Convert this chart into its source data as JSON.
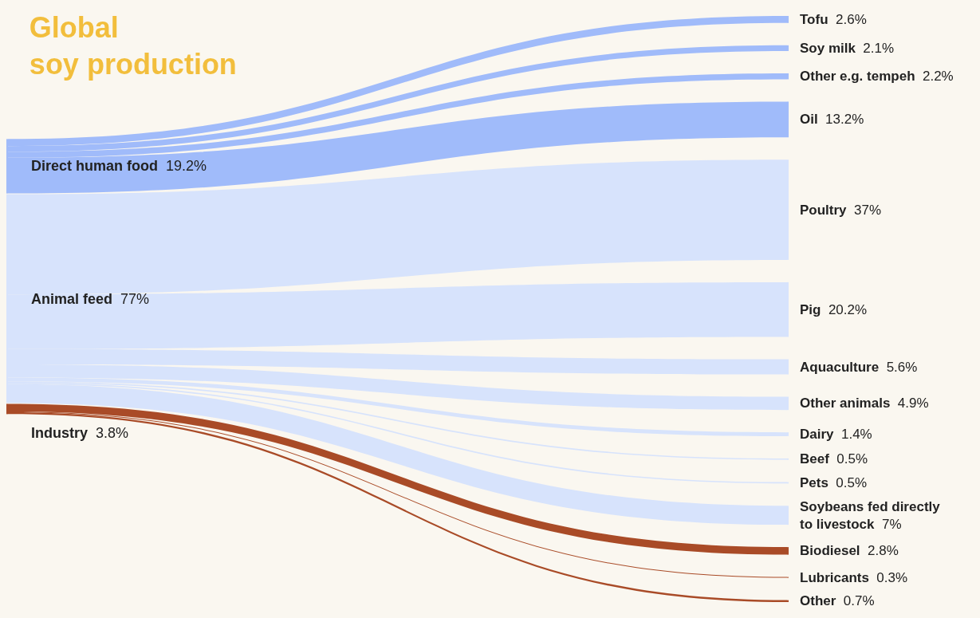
{
  "chart_data": {
    "type": "other",
    "title": "Global\nsoy production",
    "categories": [
      "Direct human food",
      "Animal feed",
      "Industry",
      "Tofu",
      "Soy milk",
      "Other e.g. tempeh",
      "Oil",
      "Poultry",
      "Pig",
      "Aquaculture",
      "Other animals",
      "Dairy",
      "Beef",
      "Pets",
      "Soybeans fed directly to livestock",
      "Biodiesel",
      "Lubricants",
      "Other"
    ],
    "values": [
      19.2,
      77,
      3.8,
      2.6,
      2.1,
      2.2,
      13.2,
      37,
      20.2,
      5.6,
      4.9,
      1.4,
      0.5,
      0.5,
      7,
      2.8,
      0.3,
      0.7
    ],
    "value_labels": [
      "19.2%",
      "77%",
      "3.8%",
      "2.6%",
      "2.1%",
      "2.2%",
      "13.2%",
      "37%",
      "20.2%",
      "5.6%",
      "4.9%",
      "1.4%",
      "0.5%",
      "0.5%",
      "7%",
      "2.8%",
      "0.3%",
      "0.7%"
    ],
    "colors": [
      "#a0bbfa",
      "#d7e3fc",
      "#a94b27",
      "#a0bbfa",
      "#a0bbfa",
      "#a0bbfa",
      "#a0bbfa",
      "#d7e3fc",
      "#d7e3fc",
      "#d7e3fc",
      "#d7e3fc",
      "#d7e3fc",
      "#d7e3fc",
      "#d7e3fc",
      "#d7e3fc",
      "#a94b27",
      "#a94b27",
      "#a94b27"
    ]
  }
}
